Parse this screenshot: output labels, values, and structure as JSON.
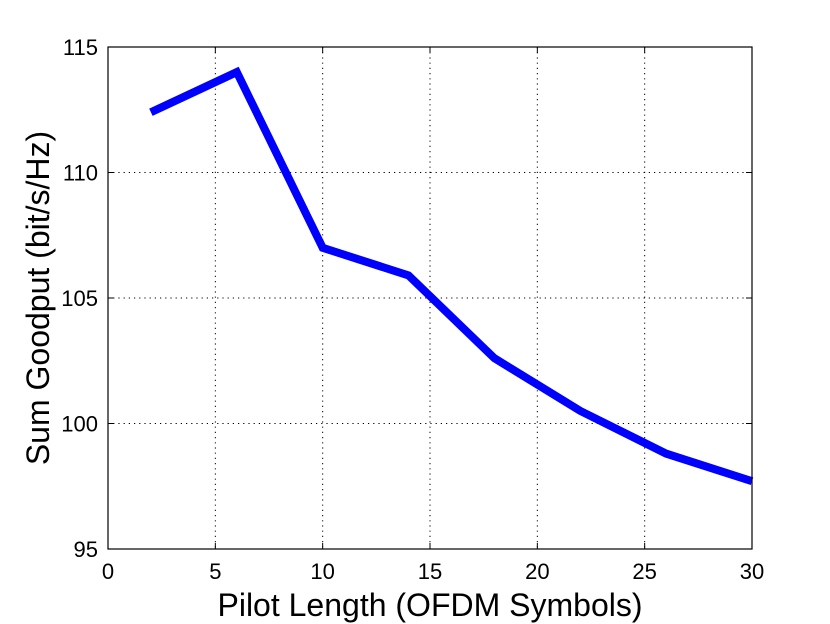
{
  "chart_data": {
    "type": "line",
    "xlabel": "Pilot Length (OFDM Symbols)",
    "ylabel": "Sum Goodput (bit/s/Hz)",
    "xlim": [
      0,
      30
    ],
    "ylim": [
      95,
      115
    ],
    "xticks": [
      "0",
      "5",
      "10",
      "15",
      "20",
      "25",
      "30"
    ],
    "yticks": [
      "95",
      "100",
      "105",
      "110",
      "115"
    ],
    "grid": true,
    "series": [
      {
        "color": "#0000ff",
        "x": [
          2,
          6,
          10,
          14,
          18,
          22,
          26,
          30
        ],
        "y": [
          112.4,
          114.0,
          107.0,
          105.9,
          102.6,
          100.5,
          98.8,
          97.7
        ]
      }
    ]
  }
}
